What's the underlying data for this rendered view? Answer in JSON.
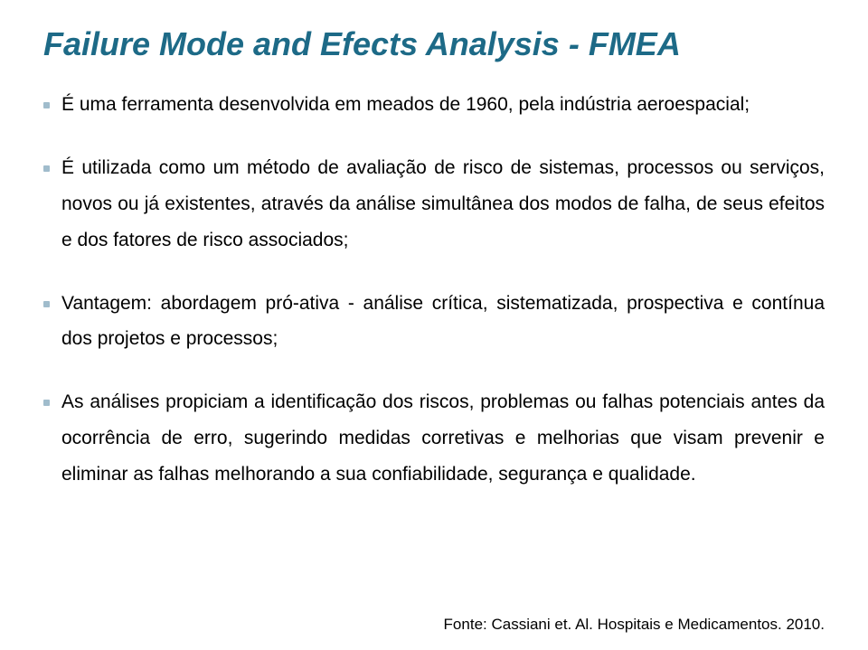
{
  "title": "Failure Mode and Efects Analysis - FMEA",
  "title_color": "#1d6a87",
  "title_fontsize": 36,
  "title_fontstyle": "italic",
  "title_fontweight": "bold",
  "bullet_marker_color": "#a0bccc",
  "body_color": "#000000",
  "body_fontsize": 21,
  "line_height": 1.9,
  "background_color": "#ffffff",
  "bullets": [
    "É uma ferramenta desenvolvida em meados de 1960, pela indústria aeroespacial;",
    "É utilizada como um método de avaliação de risco de sistemas, processos ou serviços, novos ou já existentes, através da análise simultânea dos modos de falha, de seus efeitos e dos fatores de risco associados;",
    "Vantagem: abordagem pró-ativa - análise crítica, sistematizada, prospectiva e contínua dos projetos e processos;",
    "As análises propiciam a identificação dos riscos, problemas ou falhas potenciais antes da ocorrência de erro, sugerindo medidas corretivas e melhorias que visam prevenir e eliminar as falhas melhorando a sua confiabilidade, segurança e qualidade."
  ],
  "source": "Fonte: Cassiani et. Al. Hospitais e Medicamentos. 2010."
}
